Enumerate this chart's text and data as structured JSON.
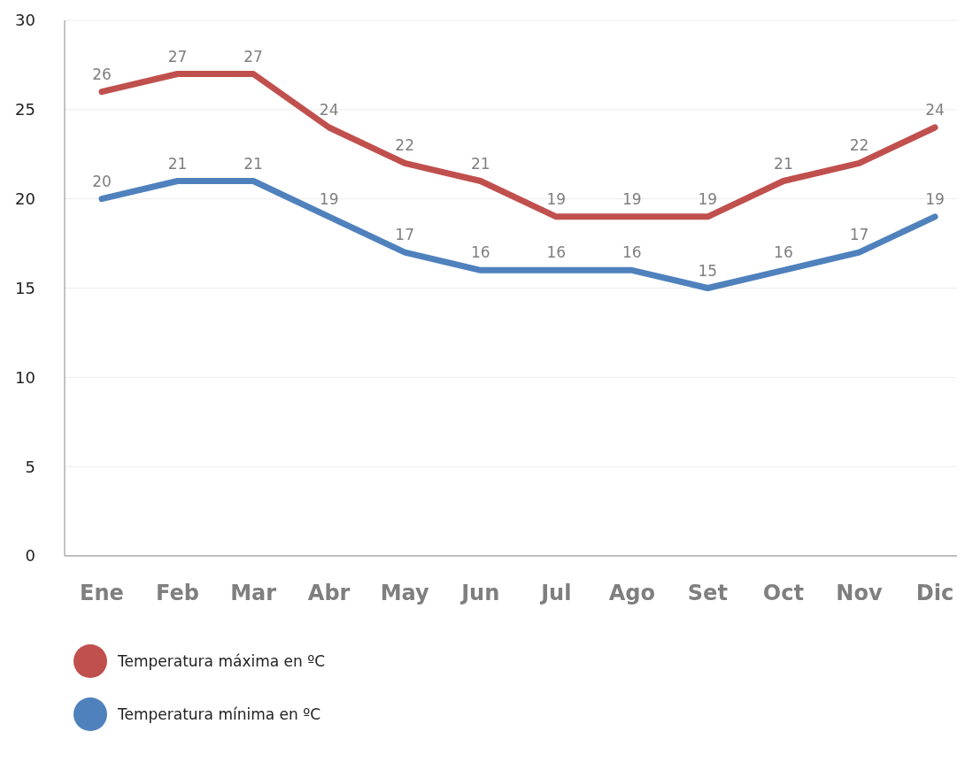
{
  "chart_data": {
    "type": "line",
    "categories": [
      "Ene",
      "Feb",
      "Mar",
      "Abr",
      "May",
      "Jun",
      "Jul",
      "Ago",
      "Set",
      "Oct",
      "Nov",
      "Dic"
    ],
    "series": [
      {
        "name": "Temperatura máxima en ºC",
        "color": "#c0504d",
        "values": [
          26,
          27,
          27,
          24,
          22,
          21,
          19,
          19,
          19,
          21,
          22,
          24
        ]
      },
      {
        "name": "Temperatura mínima en ºC",
        "color": "#4f81bd",
        "values": [
          20,
          21,
          21,
          19,
          17,
          16,
          16,
          16,
          15,
          16,
          17,
          19
        ]
      }
    ],
    "ylim": [
      0,
      30
    ],
    "yticks": [
      0,
      5,
      10,
      15,
      20,
      25,
      30
    ],
    "grid": "y",
    "legend": "bottom left",
    "data_labels": true,
    "marker": "none",
    "line_style": "solid"
  }
}
